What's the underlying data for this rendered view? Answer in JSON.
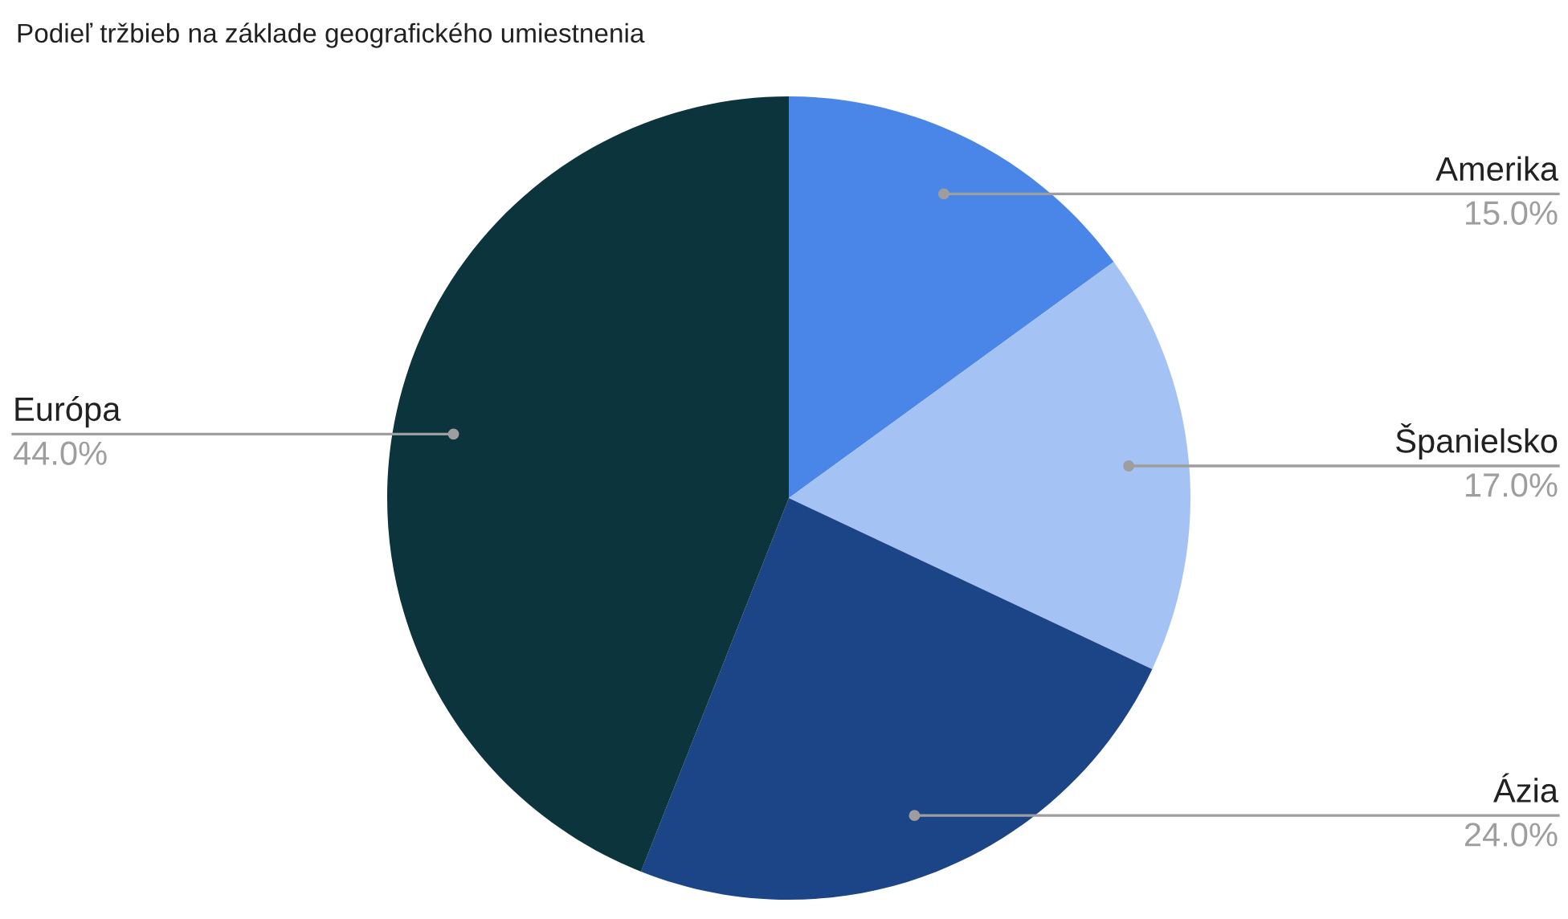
{
  "chart_data": {
    "type": "pie",
    "title": "Podieľ tržbieb na základe geografického umiestnenia",
    "categories": [
      "Amerika",
      "Španielsko",
      "Ázia",
      "Európa"
    ],
    "values": [
      15,
      17,
      24,
      44
    ],
    "colors": [
      "#4a86e8",
      "#a4c2f4",
      "#1c4587",
      "#0c343d"
    ],
    "value_labels": [
      "15.0%",
      "17.0%",
      "24.0%",
      "44.0%"
    ]
  }
}
